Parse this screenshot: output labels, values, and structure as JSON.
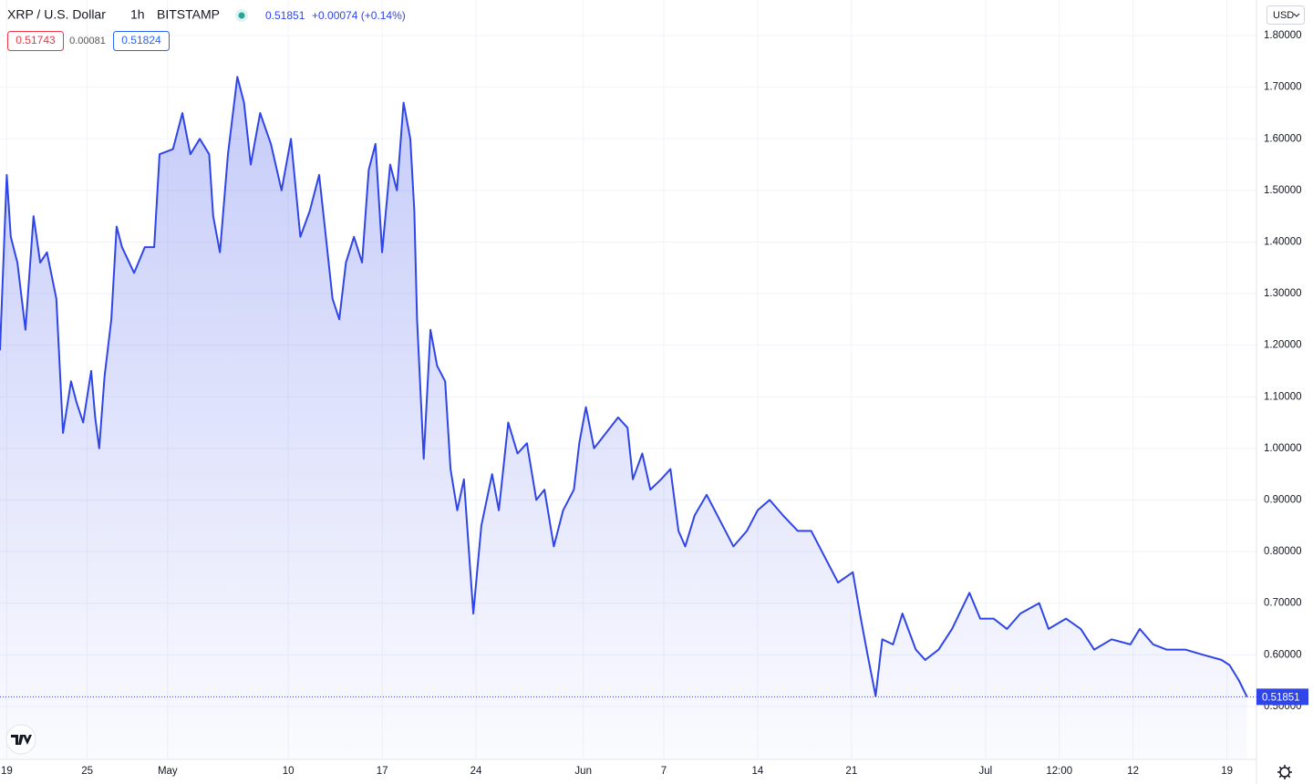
{
  "header": {
    "symbol": "XRP / U.S. Dollar",
    "interval": "1h",
    "exchange": "BITSTAMP",
    "last_price": "0.51851",
    "change": "+0.00074 (+0.14%)",
    "bid": "0.51743",
    "spread": "0.00081",
    "ask": "0.51824",
    "currency": "USD"
  },
  "chart_data": {
    "type": "area",
    "color": "#2f45e8",
    "grid": true,
    "x": [
      -0.5,
      0,
      0.3,
      0.8,
      1.4,
      2.0,
      2.5,
      3.0,
      3.7,
      4.2,
      4.8,
      5.2,
      5.7,
      6.3,
      6.6,
      6.9,
      7.3,
      7.8,
      8.2,
      8.6,
      9.5,
      10.3,
      11.0,
      11.4,
      12.4,
      13.1,
      13.7,
      14.4,
      15.1,
      15.4,
      15.9,
      16.5,
      17.2,
      17.7,
      18.2,
      18.9,
      19.7,
      20.5,
      21.2,
      21.9,
      22.6,
      23.3,
      23.8,
      24.3,
      24.8,
      25.3,
      25.9,
      26.5,
      27.0,
      27.5,
      28.0,
      28.6,
      29.1,
      29.6,
      30.1,
      30.4,
      30.6,
      31.1,
      31.6,
      32.1,
      32.7,
      33.1,
      33.6,
      34.1,
      34.5,
      34.8,
      35.4,
      36.2,
      36.7,
      37.4,
      38.1,
      38.8,
      39.5,
      40.1,
      40.8,
      41.5,
      42.3,
      42.7,
      43.2,
      43.8,
      44.7,
      45.6,
      46.3,
      46.7,
      47.4,
      48.0,
      48.8,
      49.5,
      50.1,
      50.6,
      51.3,
      52.2,
      53.2,
      54.2,
      55.2,
      56.0,
      56.9,
      57.9,
      59.0,
      60.0,
      61.0,
      62.0,
      63.1,
      63.7,
      64.2,
      64.8,
      65.3,
      66.1,
      66.8,
      67.8,
      68.5,
      69.5,
      70.5,
      71.8,
      72.6,
      73.6,
      74.6,
      75.6,
      77.0,
      77.7,
      79.0,
      80.1,
      81.1,
      82.4,
      83.8,
      84.5,
      85.5,
      86.5,
      87.9,
      89.2,
      90.6,
      91.2,
      91.9,
      92.5
    ],
    "values": [
      1.19,
      1.53,
      1.41,
      1.36,
      1.23,
      1.45,
      1.36,
      1.38,
      1.29,
      1.03,
      1.13,
      1.09,
      1.05,
      1.15,
      1.06,
      1.0,
      1.14,
      1.25,
      1.43,
      1.39,
      1.34,
      1.39,
      1.39,
      1.57,
      1.58,
      1.65,
      1.57,
      1.6,
      1.57,
      1.45,
      1.38,
      1.57,
      1.72,
      1.67,
      1.55,
      1.65,
      1.59,
      1.5,
      1.6,
      1.41,
      1.46,
      1.53,
      1.41,
      1.29,
      1.25,
      1.36,
      1.41,
      1.36,
      1.54,
      1.59,
      1.38,
      1.55,
      1.5,
      1.67,
      1.6,
      1.46,
      1.25,
      0.98,
      1.23,
      1.16,
      1.13,
      0.96,
      0.88,
      0.94,
      0.79,
      0.68,
      0.85,
      0.95,
      0.88,
      1.05,
      0.99,
      1.01,
      0.9,
      0.92,
      0.81,
      0.88,
      0.92,
      1.01,
      1.08,
      1.0,
      1.03,
      1.06,
      1.04,
      0.94,
      0.99,
      0.92,
      0.94,
      0.96,
      0.84,
      0.81,
      0.87,
      0.91,
      0.86,
      0.81,
      0.84,
      0.88,
      0.9,
      0.87,
      0.84,
      0.84,
      0.79,
      0.74,
      0.76,
      0.67,
      0.6,
      0.52,
      0.63,
      0.62,
      0.68,
      0.61,
      0.59,
      0.61,
      0.65,
      0.72,
      0.67,
      0.67,
      0.65,
      0.68,
      0.7,
      0.65,
      0.67,
      0.65,
      0.61,
      0.63,
      0.62,
      0.65,
      0.62,
      0.61,
      0.61,
      0.6,
      0.59,
      0.58,
      0.55,
      0.51851
    ],
    "xlim": [
      -0.5,
      93
    ],
    "xticks": [
      {
        "value": 0,
        "label": "19"
      },
      {
        "value": 6,
        "label": "25"
      },
      {
        "value": 12,
        "label": "May"
      },
      {
        "value": 21,
        "label": "10"
      },
      {
        "value": 28,
        "label": "17"
      },
      {
        "value": 35,
        "label": "24"
      },
      {
        "value": 43,
        "label": "Jun"
      },
      {
        "value": 49,
        "label": "7"
      },
      {
        "value": 56,
        "label": "14"
      },
      {
        "value": 63,
        "label": "21"
      },
      {
        "value": 73,
        "label": "Jul"
      },
      {
        "value": 78.5,
        "label": "12:00"
      },
      {
        "value": 84,
        "label": "12"
      },
      {
        "value": 91,
        "label": "19"
      }
    ],
    "ylim": [
      0.399,
      1.869
    ],
    "yticks": [
      {
        "value": 0.5,
        "label": "0.50000"
      },
      {
        "value": 0.6,
        "label": "0.60000"
      },
      {
        "value": 0.7,
        "label": "0.70000"
      },
      {
        "value": 0.8,
        "label": "0.80000"
      },
      {
        "value": 0.9,
        "label": "0.90000"
      },
      {
        "value": 1.0,
        "label": "1.00000"
      },
      {
        "value": 1.1,
        "label": "1.10000"
      },
      {
        "value": 1.2,
        "label": "1.20000"
      },
      {
        "value": 1.3,
        "label": "1.30000"
      },
      {
        "value": 1.4,
        "label": "1.40000"
      },
      {
        "value": 1.5,
        "label": "1.50000"
      },
      {
        "value": 1.6,
        "label": "1.60000"
      },
      {
        "value": 1.7,
        "label": "1.70000"
      },
      {
        "value": 1.8,
        "label": "1.80000"
      }
    ]
  }
}
